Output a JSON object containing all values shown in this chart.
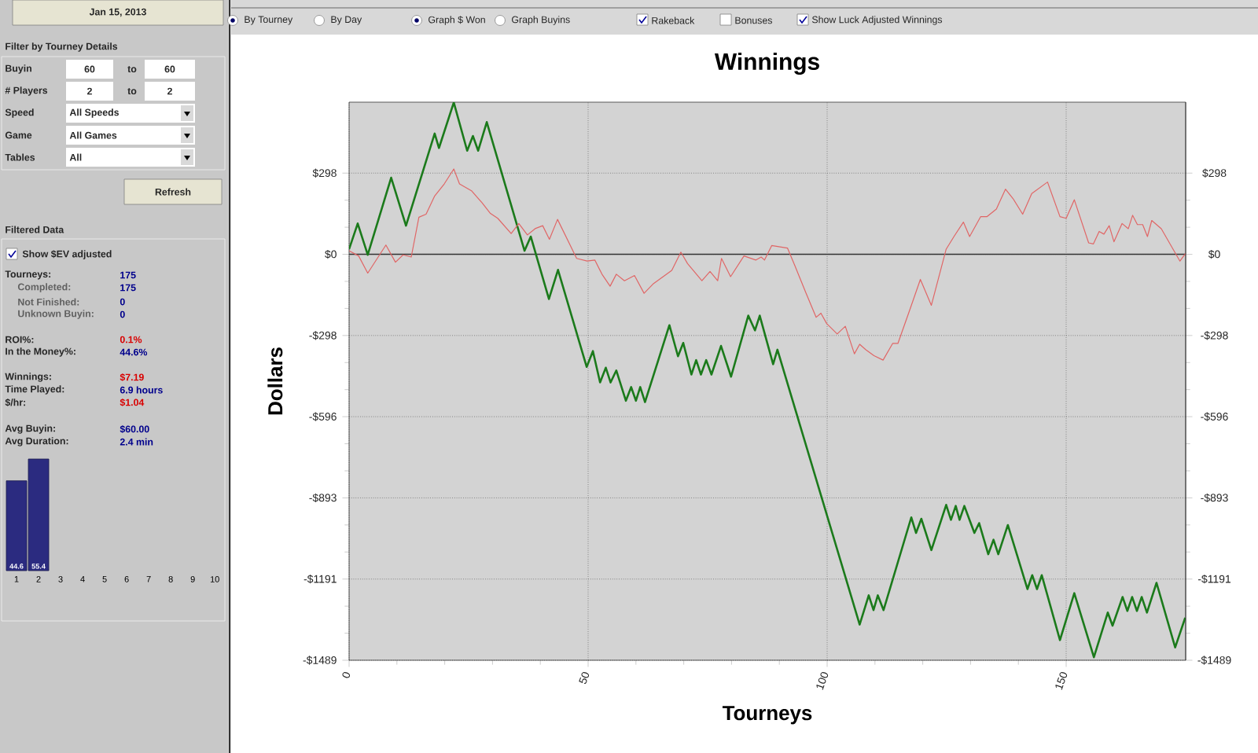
{
  "chart_data": [
    {
      "type": "line",
      "title": "Winnings",
      "xlabel": "Tourneys",
      "ylabel": "Dollars",
      "xlim": [
        0,
        175
      ],
      "xticks": [
        0,
        50,
        100,
        150
      ],
      "ylim": [
        -1489,
        558
      ],
      "yticks": [
        {
          "value": 297.8,
          "label": "$298"
        },
        {
          "value": 0,
          "label": "$0"
        },
        {
          "value": -297.8,
          "label": "-$298"
        },
        {
          "value": -595.6,
          "label": "-$596"
        },
        {
          "value": -893.4,
          "label": "-$893"
        },
        {
          "value": -1191.2,
          "label": "-$1191"
        },
        {
          "value": -1489,
          "label": "-$1489"
        }
      ],
      "y2lim": [
        -1489,
        558
      ],
      "y2ticks": [
        {
          "value": 297.8,
          "label": "$298"
        },
        {
          "value": 0,
          "label": "$0"
        },
        {
          "value": -297.8,
          "label": "-$298"
        },
        {
          "value": -595.6,
          "label": "-$596"
        },
        {
          "value": -893.4,
          "label": "-$893"
        },
        {
          "value": -1191.2,
          "label": "-$1191"
        },
        {
          "value": -1489,
          "label": "-$1489"
        }
      ],
      "grid": true,
      "marker": "none",
      "line_style": "solid",
      "ref_lines": [
        {
          "axis": "y",
          "value": 0,
          "color": "#333333"
        }
      ],
      "series": [
        {
          "color": "#1b7a1b",
          "x": [
            0,
            1.8,
            3.9,
            8.8,
            11.9,
            17.9,
            18.8,
            21.9,
            24.7,
            25.9,
            27.0,
            28.8,
            36.7,
            38.0,
            41.8,
            43.7,
            49.7,
            51.0,
            52.5,
            53.7,
            54.7,
            55.9,
            57.9,
            59.0,
            60.0,
            60.9,
            61.9,
            67.0,
            68.8,
            69.9,
            71.6,
            72.6,
            73.6,
            74.7,
            75.8,
            77.8,
            79.9,
            83.5,
            84.9,
            85.9,
            88.7,
            89.6,
            106.8,
            108.7,
            109.7,
            110.6,
            111.8,
            117.6,
            118.6,
            119.7,
            121.8,
            124.9,
            125.9,
            126.9,
            127.7,
            128.7,
            130.8,
            131.8,
            133.7,
            134.8,
            135.8,
            137.8,
            141.9,
            142.9,
            143.9,
            144.9,
            148.7,
            151.7,
            155.8,
            158.7,
            159.7,
            161.8,
            162.8,
            163.8,
            164.8,
            165.8,
            166.9,
            168.9,
            172.8,
            174.9
          ],
          "values": [
            19,
            113,
            -2,
            281,
            105,
            443,
            390,
            557,
            380,
            434,
            380,
            485,
            13,
            65,
            -164,
            -57,
            -413,
            -355,
            -470,
            -416,
            -470,
            -426,
            -537,
            -487,
            -537,
            -487,
            -542,
            -260,
            -374,
            -325,
            -441,
            -388,
            -441,
            -388,
            -441,
            -336,
            -449,
            -225,
            -279,
            -225,
            -403,
            -350,
            -1358,
            -1251,
            -1305,
            -1251,
            -1305,
            -965,
            -1022,
            -970,
            -1085,
            -919,
            -974,
            -923,
            -974,
            -923,
            -1022,
            -986,
            -1100,
            -1047,
            -1100,
            -993,
            -1228,
            -1177,
            -1228,
            -1177,
            -1415,
            -1243,
            -1478,
            -1314,
            -1362,
            -1257,
            -1308,
            -1257,
            -1308,
            -1257,
            -1314,
            -1205,
            -1442,
            -1333
          ]
        },
        {
          "color": "#e06666",
          "x": [
            0,
            2,
            3.9,
            7.7,
            9.7,
            11.3,
            13,
            14.6,
            16.1,
            17.9,
            19.9,
            21.9,
            23.1,
            25.6,
            27.8,
            29.5,
            31.1,
            33.9,
            35.5,
            37.3,
            38.9,
            40.5,
            41.9,
            43.6,
            47.6,
            49.8,
            51.4,
            52.9,
            54.6,
            55.9,
            57.6,
            59.7,
            61.7,
            63.7,
            67.5,
            69.4,
            70.8,
            73.8,
            75.5,
            77.1,
            77.9,
            79.8,
            82.6,
            85.1,
            86.2,
            86.9,
            88.4,
            91.7,
            93.3,
            95.5,
            97.7,
            98.7,
            99.9,
            102.1,
            103.8,
            105.7,
            106.8,
            108.1,
            109.8,
            111.7,
            113.7,
            114.8,
            117.5,
            119.5,
            121.8,
            124.9,
            126.6,
            128.5,
            129.8,
            132.1,
            133.4,
            135.4,
            137.3,
            138.9,
            140.9,
            142.8,
            146.1,
            148.7,
            150.0,
            151.7,
            154.7,
            155.7,
            156.9,
            157.9,
            159.0,
            160.0,
            161.7,
            163.0,
            163.9,
            164.9,
            166.0,
            167.0,
            167.9,
            169.9,
            171.6,
            173.8,
            175
          ],
          "values": [
            13,
            -6,
            -69,
            34,
            -29,
            -2,
            -10,
            136,
            147,
            214,
            258,
            313,
            258,
            233,
            189,
            151,
            132,
            76,
            113,
            71,
            94,
            105,
            55,
            128,
            -15,
            -25,
            -21,
            -73,
            -117,
            -73,
            -97,
            -78,
            -143,
            -107,
            -59,
            8,
            -34,
            -97,
            -63,
            -97,
            -15,
            -82,
            -6,
            -21,
            -10,
            -21,
            32,
            23,
            -44,
            -139,
            -231,
            -216,
            -254,
            -292,
            -264,
            -365,
            -330,
            -350,
            -372,
            -388,
            -327,
            -327,
            -193,
            -92,
            -187,
            19,
            67,
            118,
            65,
            138,
            138,
            166,
            239,
            204,
            147,
            223,
            265,
            138,
            132,
            200,
            42,
            38,
            84,
            74,
            105,
            46,
            113,
            94,
            143,
            109,
            109,
            65,
            124,
            94,
            42,
            -25,
            4
          ]
        }
      ]
    },
    {
      "type": "other",
      "annotations": [
        "Jan 15, 2013",
        "Filter by Tourney Details",
        "Buyin",
        "60",
        "to",
        "60",
        "# Players",
        "2",
        "to",
        "2",
        "Speed",
        "All Speeds",
        "Game",
        "All Games",
        "Tables",
        "All",
        "Refresh",
        "Filtered Data",
        "Show $EV adjusted",
        "Tourneys:",
        "175",
        "Completed:",
        "175",
        "Not Finished:",
        "0",
        "Unknown Buyin:",
        "0",
        "ROI%:",
        "0.1%",
        "In the Money%:",
        "44.6%",
        "Winnings:",
        "$7.19",
        "Time Played:",
        "6.9 hours",
        "$/hr:",
        "$1.04",
        "Avg Buyin:",
        "$60.00",
        "Avg Duration:",
        "2.4 min",
        "By Tourney",
        "By Day",
        "Graph $ Won",
        "Graph Buyins",
        "Rakeback",
        "Bonuses",
        "Show Luck Adjusted Winnings"
      ]
    },
    {
      "type": "bar",
      "categories": [
        "1",
        "2",
        "3",
        "4",
        "5",
        "6",
        "7",
        "8",
        "9",
        "10"
      ],
      "values": [
        44.6,
        55.4,
        null,
        null,
        null,
        null,
        null,
        null,
        null,
        null
      ],
      "color": "#2b2b80",
      "data_labels": true,
      "tick_labels": "x"
    }
  ]
}
